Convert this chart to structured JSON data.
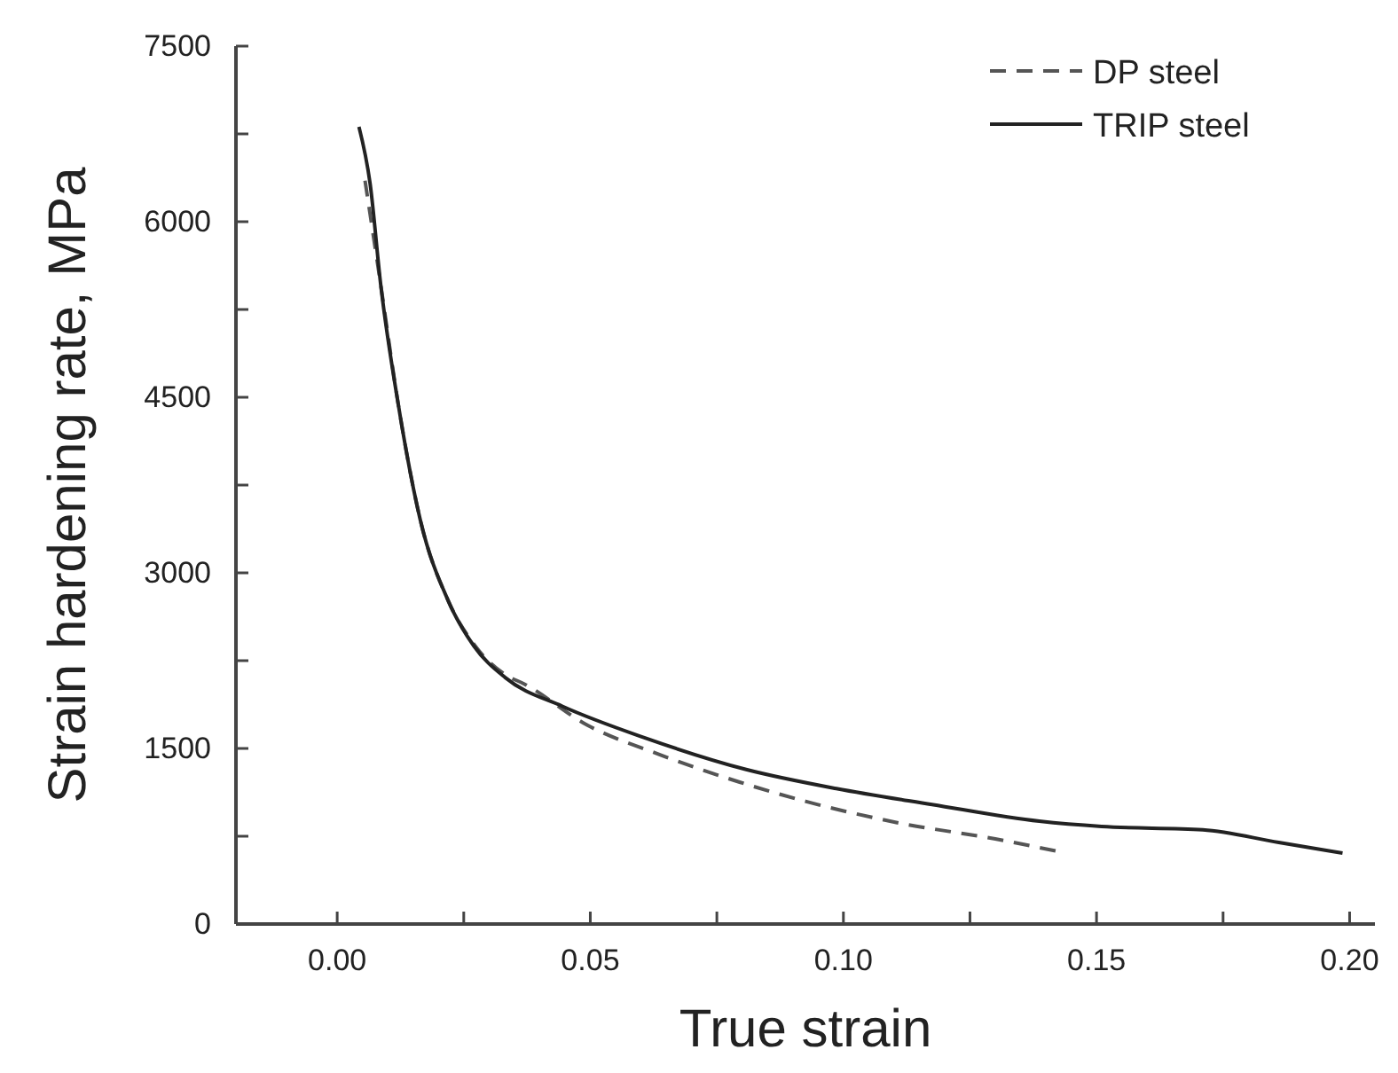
{
  "chart_data": {
    "type": "line",
    "xlabel": "True strain",
    "ylabel": "Strain hardening rate, MPa",
    "xlim": [
      -0.02,
      0.205
    ],
    "ylim": [
      0,
      7500
    ],
    "xticks": [
      {
        "value": 0,
        "label": "0.00"
      },
      {
        "value": 0.025,
        "label": null
      },
      {
        "value": 0.05,
        "label": "0.05"
      },
      {
        "value": 0.075,
        "label": null
      },
      {
        "value": 0.1,
        "label": "0.10"
      },
      {
        "value": 0.125,
        "label": null
      },
      {
        "value": 0.15,
        "label": "0.15"
      },
      {
        "value": 0.175,
        "label": null
      },
      {
        "value": 0.2,
        "label": "0.20"
      }
    ],
    "yticks": [
      0,
      {
        "value": 750,
        "label": null
      },
      1500,
      {
        "value": 2250,
        "label": null
      },
      3000,
      {
        "value": 3750,
        "label": null
      },
      4500,
      {
        "value": 5250,
        "label": null
      },
      6000,
      {
        "value": 6750,
        "label": null
      },
      7500
    ],
    "legend": "top right",
    "grid": false,
    "marker": "none",
    "series": [
      {
        "name": "DP steel",
        "color": "#555555",
        "line_style": "dashed",
        "x": [
          0.0055,
          0.0086,
          0.0121,
          0.0164,
          0.022,
          0.027,
          0.0332,
          0.037,
          0.0495,
          0.0633,
          0.0795,
          0.0925,
          0.111,
          0.13,
          0.1423
        ],
        "values": [
          6350,
          5460,
          4430,
          3455,
          2755,
          2390,
          2130,
          2050,
          1697,
          1454,
          1212,
          1048,
          863,
          727,
          621
        ]
      },
      {
        "name": "TRIP steel",
        "color": "#222222",
        "line_style": "solid",
        "x": [
          0.0043,
          0.0065,
          0.0086,
          0.0121,
          0.0164,
          0.022,
          0.027,
          0.0332,
          0.0445,
          0.0608,
          0.0808,
          0.0986,
          0.1175,
          0.1387,
          0.151,
          0.171,
          0.186,
          0.1986
        ],
        "values": [
          6810,
          6325,
          5460,
          4430,
          3455,
          2755,
          2375,
          2105,
          1860,
          1590,
          1320,
          1157,
          1021,
          878,
          833,
          805,
          697,
          606
        ]
      }
    ]
  }
}
